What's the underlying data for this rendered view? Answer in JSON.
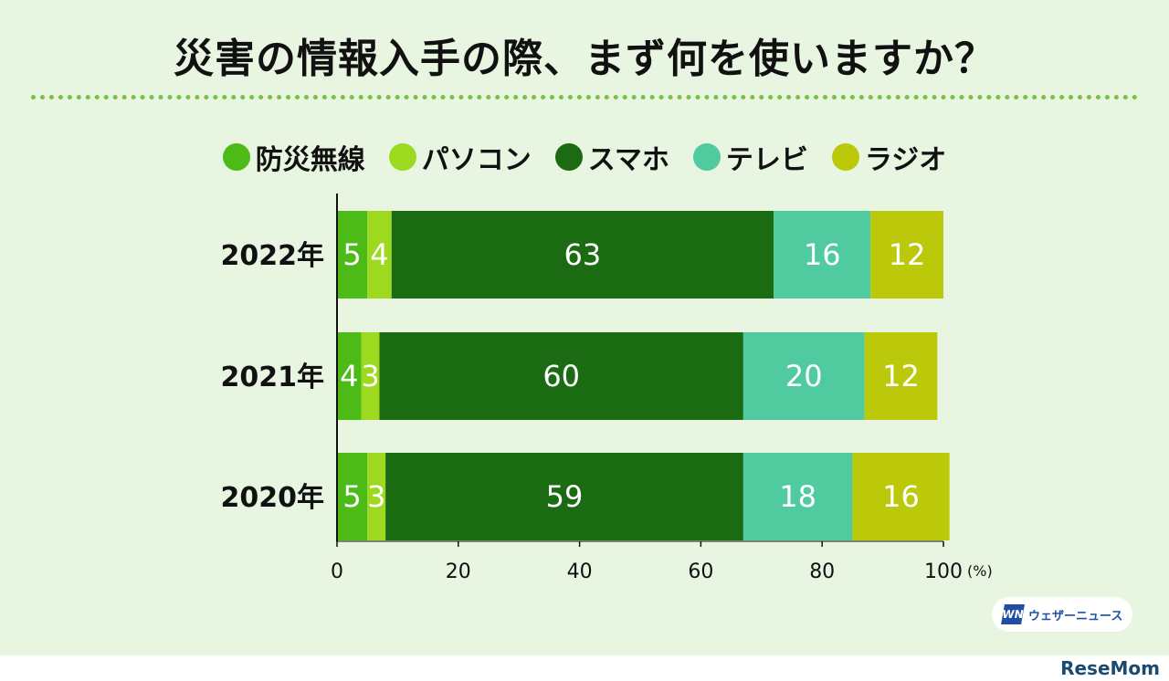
{
  "title": "災害の情報入手の際、まず何を使いますか？",
  "chart_data": {
    "type": "bar",
    "orientation": "horizontal",
    "stacked": true,
    "categories": [
      "2022年",
      "2021年",
      "2020年"
    ],
    "series": [
      {
        "name": "防災無線",
        "color": "#4cbb17",
        "values": [
          5,
          4,
          5
        ]
      },
      {
        "name": "パソコン",
        "color": "#9cd91f",
        "values": [
          4,
          3,
          3
        ]
      },
      {
        "name": "スマホ",
        "color": "#1b6b12",
        "values": [
          63,
          60,
          59
        ]
      },
      {
        "name": "テレビ",
        "color": "#4fcb9f",
        "values": [
          16,
          20,
          18
        ]
      },
      {
        "name": "ラジオ",
        "color": "#bcc90b",
        "values": [
          12,
          12,
          16
        ]
      }
    ],
    "xlim": [
      0,
      100
    ],
    "xticks": [
      "0",
      "20",
      "40",
      "60",
      "80",
      "100"
    ],
    "x_unit": "(%)",
    "legend_position": "top"
  },
  "logo_text": "ウェザーニュース",
  "logo_mark": "WN",
  "watermark": "ReseMom"
}
